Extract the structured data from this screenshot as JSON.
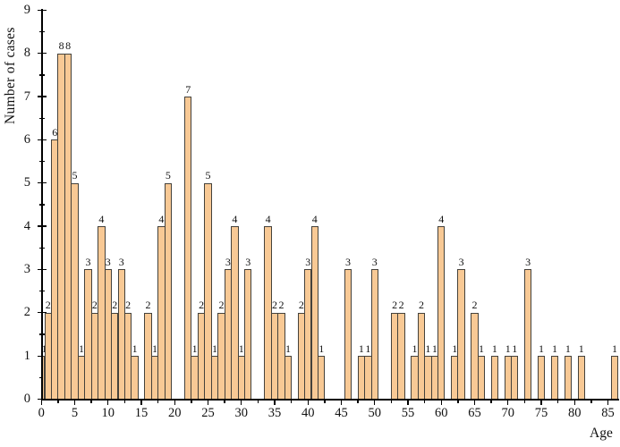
{
  "figure": {
    "kind": "histogram-figure",
    "background": "#ffffff"
  },
  "chart_data": {
    "type": "bar",
    "title": "",
    "xlabel": "Age",
    "ylabel": "Number of cases",
    "age_min": 0,
    "age_max": 86,
    "values": [
      1,
      2,
      6,
      8,
      8,
      5,
      1,
      3,
      2,
      4,
      3,
      2,
      3,
      2,
      1,
      0,
      2,
      1,
      4,
      5,
      0,
      0,
      7,
      1,
      2,
      5,
      1,
      2,
      3,
      4,
      1,
      3,
      0,
      0,
      4,
      2,
      2,
      1,
      0,
      2,
      3,
      4,
      1,
      0,
      0,
      0,
      3,
      0,
      1,
      1,
      3,
      0,
      0,
      2,
      2,
      0,
      1,
      2,
      1,
      1,
      4,
      0,
      1,
      3,
      0,
      2,
      1,
      0,
      1,
      0,
      1,
      1,
      0,
      3,
      0,
      1,
      0,
      1,
      0,
      1,
      0,
      1,
      0,
      0,
      0,
      0,
      1
    ],
    "data_labels_shown": true,
    "x_major_ticks": [
      0,
      5,
      10,
      15,
      20,
      25,
      30,
      35,
      40,
      45,
      50,
      55,
      60,
      65,
      70,
      75,
      80,
      85
    ],
    "x_minor_tick_step": 2.5,
    "y_major_ticks": [
      0,
      1,
      2,
      3,
      4,
      5,
      6,
      7,
      8,
      9
    ],
    "y_minor_tick_step": 0.5,
    "ylim": [
      0,
      9
    ],
    "grid": false,
    "legend": false,
    "bar_color": "#F8C995",
    "bar_border_color": "#45423C",
    "axis_color": "#000000",
    "text_color": "#111111"
  }
}
